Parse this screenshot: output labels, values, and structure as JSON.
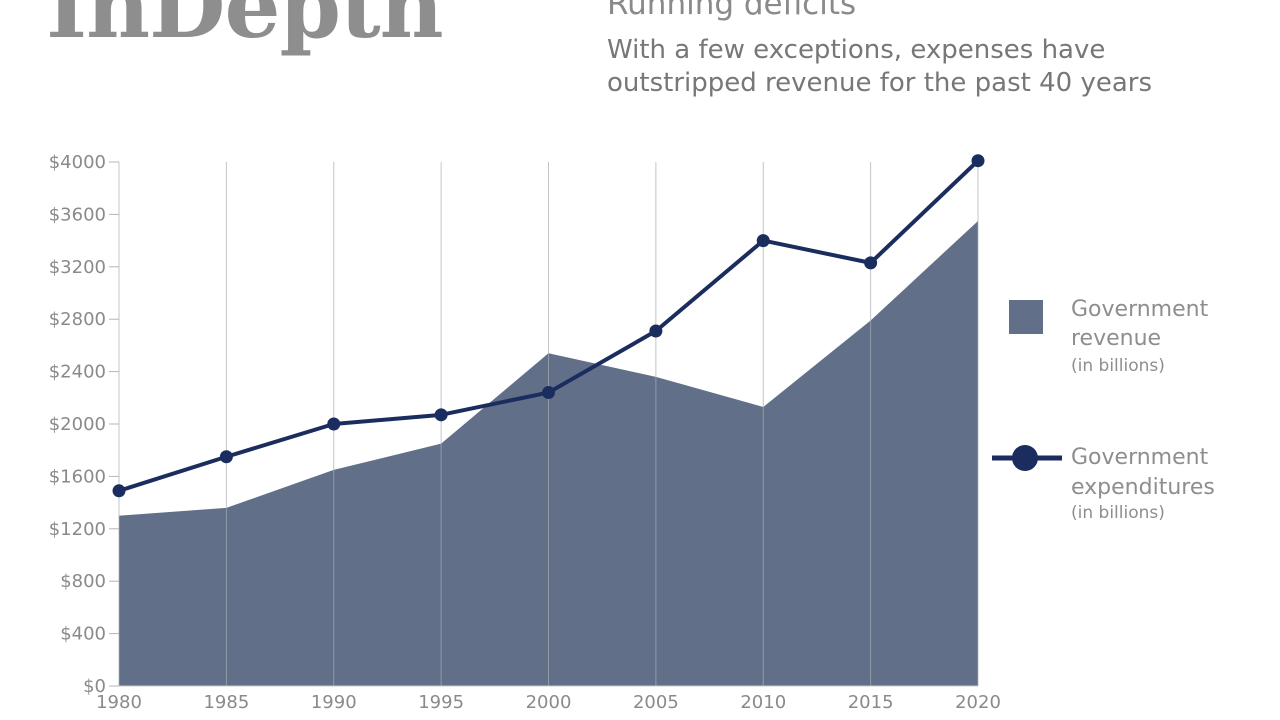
{
  "header": {
    "logo": "InDepth",
    "title": "Running deficits",
    "subtitle_line1": "With a few exceptions, expenses have",
    "subtitle_line2": "outstripped revenue for the past 40 years"
  },
  "chart_data": {
    "type": "area",
    "title": "Running deficits",
    "x": [
      1980,
      1985,
      1990,
      1995,
      2000,
      2005,
      2010,
      2015,
      2020
    ],
    "y_ticks": [
      "$0",
      "$400",
      "$800",
      "$1200",
      "$1600",
      "$2000",
      "$2400",
      "$2800",
      "$3200",
      "$3600",
      "$4000"
    ],
    "x_ticks": [
      "1980",
      "1985",
      "1990",
      "1995",
      "2000",
      "2005",
      "2010",
      "2015",
      "2020"
    ],
    "ylim": [
      0,
      4000
    ],
    "xlim": [
      1980,
      2020
    ],
    "grid": "vertical",
    "series": [
      {
        "name": "Government revenue",
        "unit": "(in billions)",
        "type": "area",
        "color": "#617088",
        "values": [
          1300,
          1360,
          1650,
          1850,
          2540,
          2360,
          2130,
          2790,
          3550
        ]
      },
      {
        "name": "Government expenditures",
        "unit": "(in billions)",
        "type": "line",
        "color": "#1b2d5e",
        "values": [
          1490,
          1750,
          2000,
          2070,
          2240,
          2710,
          3400,
          3230,
          4010
        ]
      }
    ],
    "legend": {
      "position": "right",
      "revenue_line1": "Government",
      "revenue_line2": "revenue",
      "revenue_unit": "(in billions)",
      "expend_line1": "Government",
      "expend_line2": "expenditures",
      "expend_unit": "(in billions)"
    }
  }
}
